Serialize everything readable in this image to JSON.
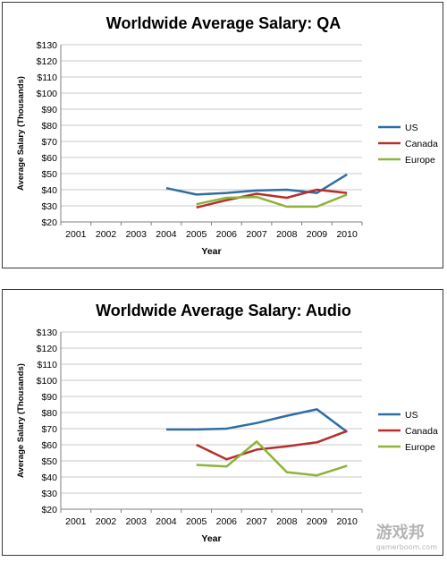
{
  "chart_data": [
    {
      "type": "line",
      "title": "Worldwide Average Salary: QA",
      "xlabel": "Year",
      "ylabel": "Average Salary (Thousands)",
      "x": [
        "2001",
        "2002",
        "2003",
        "2004",
        "2005",
        "2006",
        "2007",
        "2008",
        "2009",
        "2010"
      ],
      "ylim": [
        20,
        130
      ],
      "yticks": [
        "$20",
        "$30",
        "$40",
        "$50",
        "$60",
        "$70",
        "$80",
        "$90",
        "$100",
        "$110",
        "$120",
        "$130"
      ],
      "grid": true,
      "legend": "right",
      "series": [
        {
          "name": "US",
          "color": "#2e6da4",
          "values": [
            null,
            null,
            null,
            41,
            37,
            38,
            39.5,
            40,
            38,
            49.5
          ]
        },
        {
          "name": "Canada",
          "color": "#b5302b",
          "values": [
            null,
            null,
            null,
            null,
            29,
            33.5,
            37.5,
            35,
            40,
            38
          ]
        },
        {
          "name": "Europe",
          "color": "#8db33a",
          "values": [
            null,
            null,
            null,
            null,
            31,
            35,
            35.5,
            29.5,
            29.5,
            37
          ]
        }
      ]
    },
    {
      "type": "line",
      "title": "Worldwide Average Salary: Audio",
      "xlabel": "Year",
      "ylabel": "Average Salary (Thousands)",
      "x": [
        "2001",
        "2002",
        "2003",
        "2004",
        "2005",
        "2006",
        "2007",
        "2008",
        "2009",
        "2010"
      ],
      "ylim": [
        20,
        130
      ],
      "yticks": [
        "$20",
        "$30",
        "$40",
        "$50",
        "$60",
        "$70",
        "$80",
        "$90",
        "$100",
        "$110",
        "$120",
        "$130"
      ],
      "grid": true,
      "legend": "right",
      "series": [
        {
          "name": "US",
          "color": "#2e6da4",
          "values": [
            null,
            null,
            null,
            69.5,
            69.5,
            70,
            73.5,
            78,
            82,
            68
          ]
        },
        {
          "name": "Canada",
          "color": "#b5302b",
          "values": [
            null,
            null,
            null,
            null,
            60,
            51,
            57,
            59,
            61.5,
            68.5
          ]
        },
        {
          "name": "Europe",
          "color": "#8db33a",
          "values": [
            null,
            null,
            null,
            null,
            47.5,
            46.5,
            62,
            43,
            41,
            47
          ]
        }
      ]
    }
  ],
  "watermark": {
    "text": "游戏邦",
    "url": "gamerboom.com"
  }
}
